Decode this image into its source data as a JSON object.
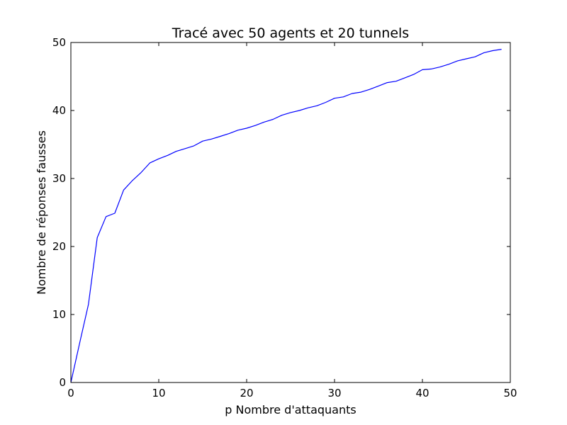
{
  "chart_data": {
    "type": "line",
    "title": "Tracé avec 50 agents et 20 tunnels",
    "xlabel": "p Nombre d'attaquants",
    "ylabel": "Nombre de réponses fausses",
    "xlim": [
      0,
      50
    ],
    "ylim": [
      0,
      50
    ],
    "xticks": [
      0,
      10,
      20,
      30,
      40,
      50
    ],
    "yticks": [
      0,
      10,
      20,
      30,
      40,
      50
    ],
    "xtick_labels": [
      "0",
      "10",
      "20",
      "30",
      "40",
      "50"
    ],
    "ytick_labels": [
      "0",
      "10",
      "20",
      "30",
      "40",
      "50"
    ],
    "grid": false,
    "legend": "none",
    "series": [
      {
        "color": "#0000ff",
        "x": [
          0,
          1,
          2,
          3,
          4,
          5,
          6,
          7,
          8,
          9,
          10,
          11,
          12,
          13,
          14,
          15,
          16,
          17,
          18,
          19,
          20,
          21,
          22,
          23,
          24,
          25,
          26,
          27,
          28,
          29,
          30,
          31,
          32,
          33,
          34,
          35,
          36,
          37,
          38,
          39,
          40,
          41,
          42,
          43,
          44,
          45,
          46,
          47,
          48,
          49
        ],
        "y": [
          0,
          5.8,
          11.5,
          21.3,
          24.4,
          24.9,
          28.3,
          29.7,
          30.9,
          32.3,
          32.9,
          33.4,
          34.0,
          34.4,
          34.8,
          35.5,
          35.8,
          36.2,
          36.6,
          37.1,
          37.4,
          37.8,
          38.3,
          38.7,
          39.3,
          39.7,
          40.0,
          40.4,
          40.7,
          41.2,
          41.8,
          42.0,
          42.5,
          42.7,
          43.1,
          43.6,
          44.1,
          44.3,
          44.8,
          45.3,
          46.0,
          46.1,
          46.4,
          46.8,
          47.3,
          47.6,
          47.9,
          48.5,
          48.8,
          49.0
        ]
      }
    ]
  }
}
